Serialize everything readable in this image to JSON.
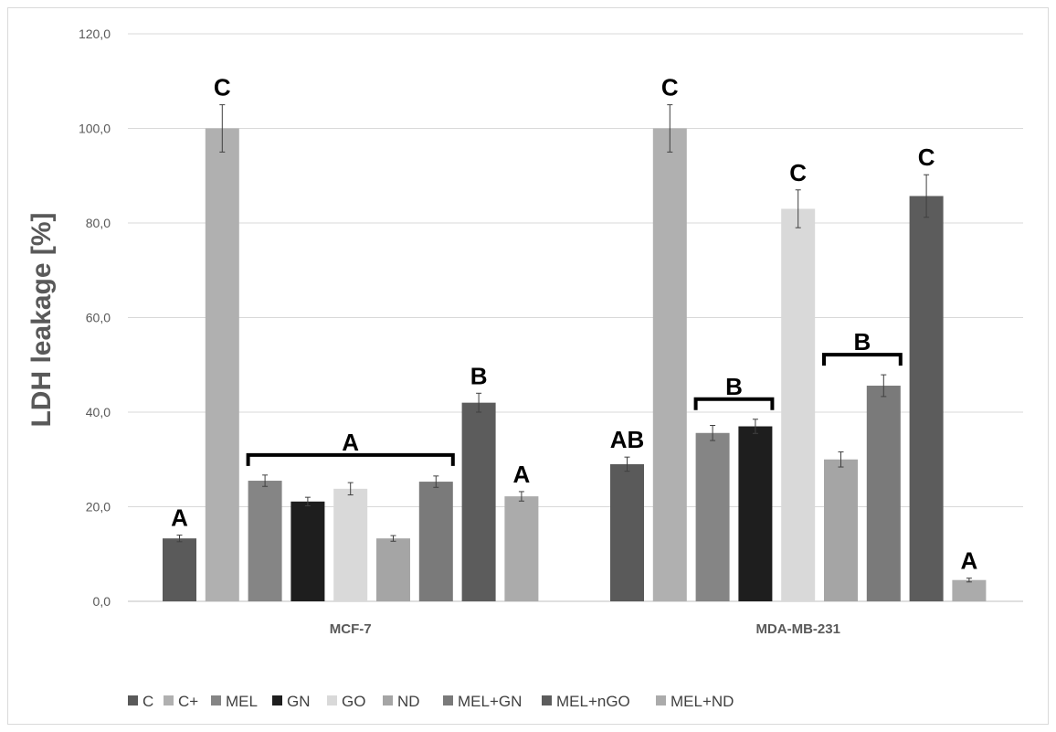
{
  "chart_data": {
    "type": "bar",
    "ylabel": "LDH leakage [%]",
    "ylim": [
      0,
      120
    ],
    "yticks": [
      "0,0",
      "20,0",
      "40,0",
      "60,0",
      "80,0",
      "100,0",
      "120,0"
    ],
    "ytick_values": [
      0,
      20,
      40,
      60,
      80,
      100,
      120
    ],
    "grid": true,
    "legend_position": "bottom",
    "categories": [
      "MCF-7",
      "MDA-MB-231"
    ],
    "series": [
      {
        "name": "C",
        "color": "#5a5a5a",
        "values": [
          13.3,
          29.0
        ],
        "errors": [
          0.7,
          1.5
        ]
      },
      {
        "name": "C+",
        "color": "#b0b0b0",
        "values": [
          100.0,
          100.0
        ],
        "errors": [
          5.0,
          5.0
        ]
      },
      {
        "name": "MEL",
        "color": "#858585",
        "values": [
          25.5,
          35.6
        ],
        "errors": [
          1.2,
          1.6
        ]
      },
      {
        "name": "GN",
        "color": "#1e1e1e",
        "values": [
          21.1,
          37.0
        ],
        "errors": [
          0.9,
          1.5
        ]
      },
      {
        "name": "GO",
        "color": "#d9d9d9",
        "values": [
          23.8,
          83.0
        ],
        "errors": [
          1.3,
          4.0
        ]
      },
      {
        "name": "ND",
        "color": "#a5a5a5",
        "values": [
          13.3,
          30.0
        ],
        "errors": [
          0.6,
          1.6
        ]
      },
      {
        "name": "MEL+GN",
        "color": "#7a7a7a",
        "values": [
          25.3,
          45.6
        ],
        "errors": [
          1.2,
          2.3
        ]
      },
      {
        "name": "MEL+nGO",
        "color": "#5c5c5c",
        "values": [
          42.0,
          85.7
        ],
        "errors": [
          2.0,
          4.5
        ]
      },
      {
        "name": "MEL+ND",
        "color": "#ababab",
        "values": [
          22.2,
          4.5
        ],
        "errors": [
          1.0,
          0.4
        ]
      }
    ],
    "significance_labels": [
      {
        "text": "A",
        "group": 0,
        "bars": [
          0
        ]
      },
      {
        "text": "C",
        "group": 0,
        "bars": [
          1
        ]
      },
      {
        "text": "A",
        "group": 0,
        "bars": [
          2,
          6
        ]
      },
      {
        "text": "B",
        "group": 0,
        "bars": [
          7
        ]
      },
      {
        "text": "A",
        "group": 0,
        "bars": [
          8
        ]
      },
      {
        "text": "AB",
        "group": 1,
        "bars": [
          0
        ]
      },
      {
        "text": "C",
        "group": 1,
        "bars": [
          1
        ]
      },
      {
        "text": "B",
        "group": 1,
        "bars": [
          2,
          3
        ]
      },
      {
        "text": "C",
        "group": 1,
        "bars": [
          4
        ]
      },
      {
        "text": "B",
        "group": 1,
        "bars": [
          5,
          6
        ]
      },
      {
        "text": "C",
        "group": 1,
        "bars": [
          7
        ]
      },
      {
        "text": "A",
        "group": 1,
        "bars": [
          8
        ]
      }
    ]
  }
}
